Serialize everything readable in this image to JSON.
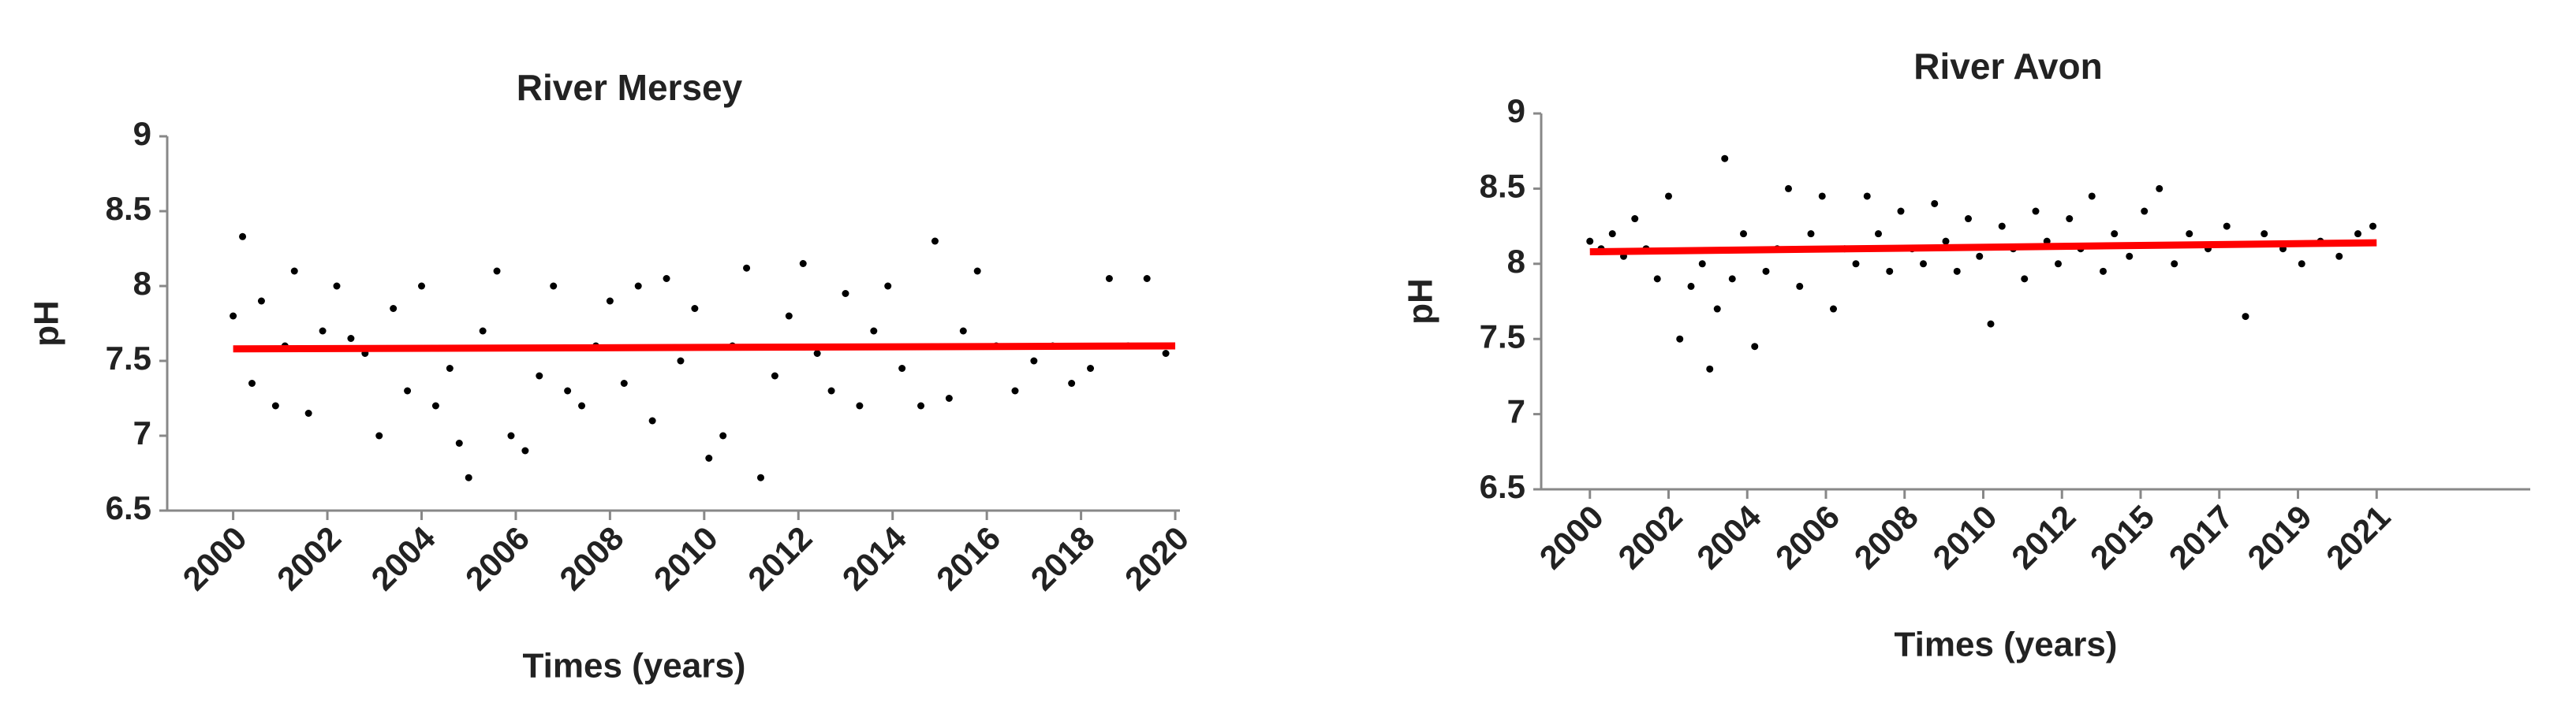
{
  "chart_data": [
    {
      "type": "scatter",
      "title": "River Mersey",
      "x_label": "Times (years)",
      "y_label": "pH",
      "xlim": [
        1998.6,
        2020.1
      ],
      "xticks": [
        2000,
        2002,
        2004,
        2006,
        2008,
        2010,
        2012,
        2014,
        2016,
        2018,
        2020
      ],
      "ylim": [
        6.5,
        9
      ],
      "yticks": [
        6.5,
        7,
        7.5,
        8,
        8.5,
        9
      ],
      "series": [
        {
          "color": "#000000",
          "x": [
            2000.0,
            2000.2,
            2000.4,
            2000.6,
            2000.9,
            2001.1,
            2001.3,
            2001.6,
            2001.9,
            2002.2,
            2002.5,
            2002.8,
            2003.1,
            2003.4,
            2003.7,
            2004.0,
            2004.3,
            2004.6,
            2004.8,
            2005.0,
            2005.3,
            2005.6,
            2005.9,
            2006.2,
            2006.5,
            2006.8,
            2007.1,
            2007.4,
            2007.7,
            2008.0,
            2008.3,
            2008.6,
            2008.9,
            2009.2,
            2009.5,
            2009.8,
            2010.1,
            2010.4,
            2010.6,
            2010.9,
            2011.2,
            2011.5,
            2011.8,
            2012.1,
            2012.4,
            2012.7,
            2013.0,
            2013.3,
            2013.6,
            2013.9,
            2014.2,
            2014.6,
            2014.9,
            2015.2,
            2015.5,
            2015.8,
            2016.2,
            2016.6,
            2017.0,
            2017.4,
            2017.8,
            2018.2,
            2018.6,
            2019.0,
            2019.4,
            2019.8
          ],
          "values": [
            7.8,
            8.33,
            7.35,
            7.9,
            7.2,
            7.6,
            8.1,
            7.15,
            7.7,
            8.0,
            7.65,
            7.55,
            7.0,
            7.85,
            7.3,
            8.0,
            7.2,
            7.45,
            6.95,
            6.72,
            7.7,
            8.1,
            7.0,
            6.9,
            7.4,
            8.0,
            7.3,
            7.2,
            7.6,
            7.9,
            7.35,
            8.0,
            7.1,
            8.05,
            7.5,
            7.85,
            6.85,
            7.0,
            7.6,
            8.12,
            6.72,
            7.4,
            7.8,
            8.15,
            7.55,
            7.3,
            7.95,
            7.2,
            7.7,
            8.0,
            7.45,
            7.2,
            8.3,
            7.25,
            7.7,
            8.1,
            7.6,
            7.3,
            7.5,
            7.6,
            7.35,
            7.45,
            8.05,
            7.6,
            8.05,
            7.55
          ]
        }
      ],
      "trend": {
        "color": "#ff0000",
        "x": [
          2000,
          2020
        ],
        "values": [
          7.58,
          7.6
        ]
      }
    },
    {
      "type": "scatter",
      "title": "River Avon",
      "x_label": "Times (years)",
      "y_label": "pH",
      "xlim": [
        1998.7,
        2025.1
      ],
      "xticks": [
        2000,
        {
          "value": 2002.1,
          "label": "2002"
        },
        {
          "value": 2004.2,
          "label": "2004"
        },
        {
          "value": 2006.3,
          "label": "2006"
        },
        {
          "value": 2008.4,
          "label": "2008"
        },
        {
          "value": 2010.5,
          "label": "2010"
        },
        {
          "value": 2012.6,
          "label": "2012"
        },
        {
          "value": 2014.7,
          "label": "2015"
        },
        {
          "value": 2016.8,
          "label": "2017"
        },
        {
          "value": 2018.9,
          "label": "2019"
        },
        2021
      ],
      "ylim": [
        6.5,
        9
      ],
      "yticks": [
        6.5,
        7,
        7.5,
        8,
        8.5,
        9
      ],
      "series": [
        {
          "color": "#000000",
          "x": [
            2000.0,
            2000.3,
            2000.6,
            2000.9,
            2001.2,
            2001.5,
            2001.8,
            2002.1,
            2002.4,
            2002.7,
            2003.0,
            2003.2,
            2003.4,
            2003.6,
            2003.8,
            2004.1,
            2004.4,
            2004.7,
            2005.0,
            2005.3,
            2005.6,
            2005.9,
            2006.2,
            2006.5,
            2006.8,
            2007.1,
            2007.4,
            2007.7,
            2008.0,
            2008.3,
            2008.6,
            2008.9,
            2009.2,
            2009.5,
            2009.8,
            2010.1,
            2010.4,
            2010.7,
            2011.0,
            2011.3,
            2011.6,
            2011.9,
            2012.2,
            2012.5,
            2012.8,
            2013.1,
            2013.4,
            2013.7,
            2014.0,
            2014.4,
            2014.8,
            2015.2,
            2015.6,
            2016.0,
            2016.5,
            2017.0,
            2017.5,
            2018.0,
            2018.5,
            2019.0,
            2019.5,
            2020.0,
            2020.5,
            2020.9
          ],
          "values": [
            8.15,
            8.1,
            8.2,
            8.05,
            8.3,
            8.1,
            7.9,
            8.45,
            7.5,
            7.85,
            8.0,
            7.3,
            7.7,
            8.7,
            7.9,
            8.2,
            7.45,
            7.95,
            8.1,
            8.5,
            7.85,
            8.2,
            8.45,
            7.7,
            8.1,
            8.0,
            8.45,
            8.2,
            7.95,
            8.35,
            8.1,
            8.0,
            8.4,
            8.15,
            7.95,
            8.3,
            8.05,
            7.6,
            8.25,
            8.1,
            7.9,
            8.35,
            8.15,
            8.0,
            8.3,
            8.1,
            8.45,
            7.95,
            8.2,
            8.05,
            8.35,
            8.5,
            8.0,
            8.2,
            8.1,
            8.25,
            7.65,
            8.2,
            8.1,
            8.0,
            8.15,
            8.05,
            8.2,
            8.25
          ]
        }
      ],
      "trend": {
        "color": "#ff0000",
        "x": [
          2000,
          2021
        ],
        "values": [
          8.08,
          8.14
        ]
      }
    }
  ]
}
